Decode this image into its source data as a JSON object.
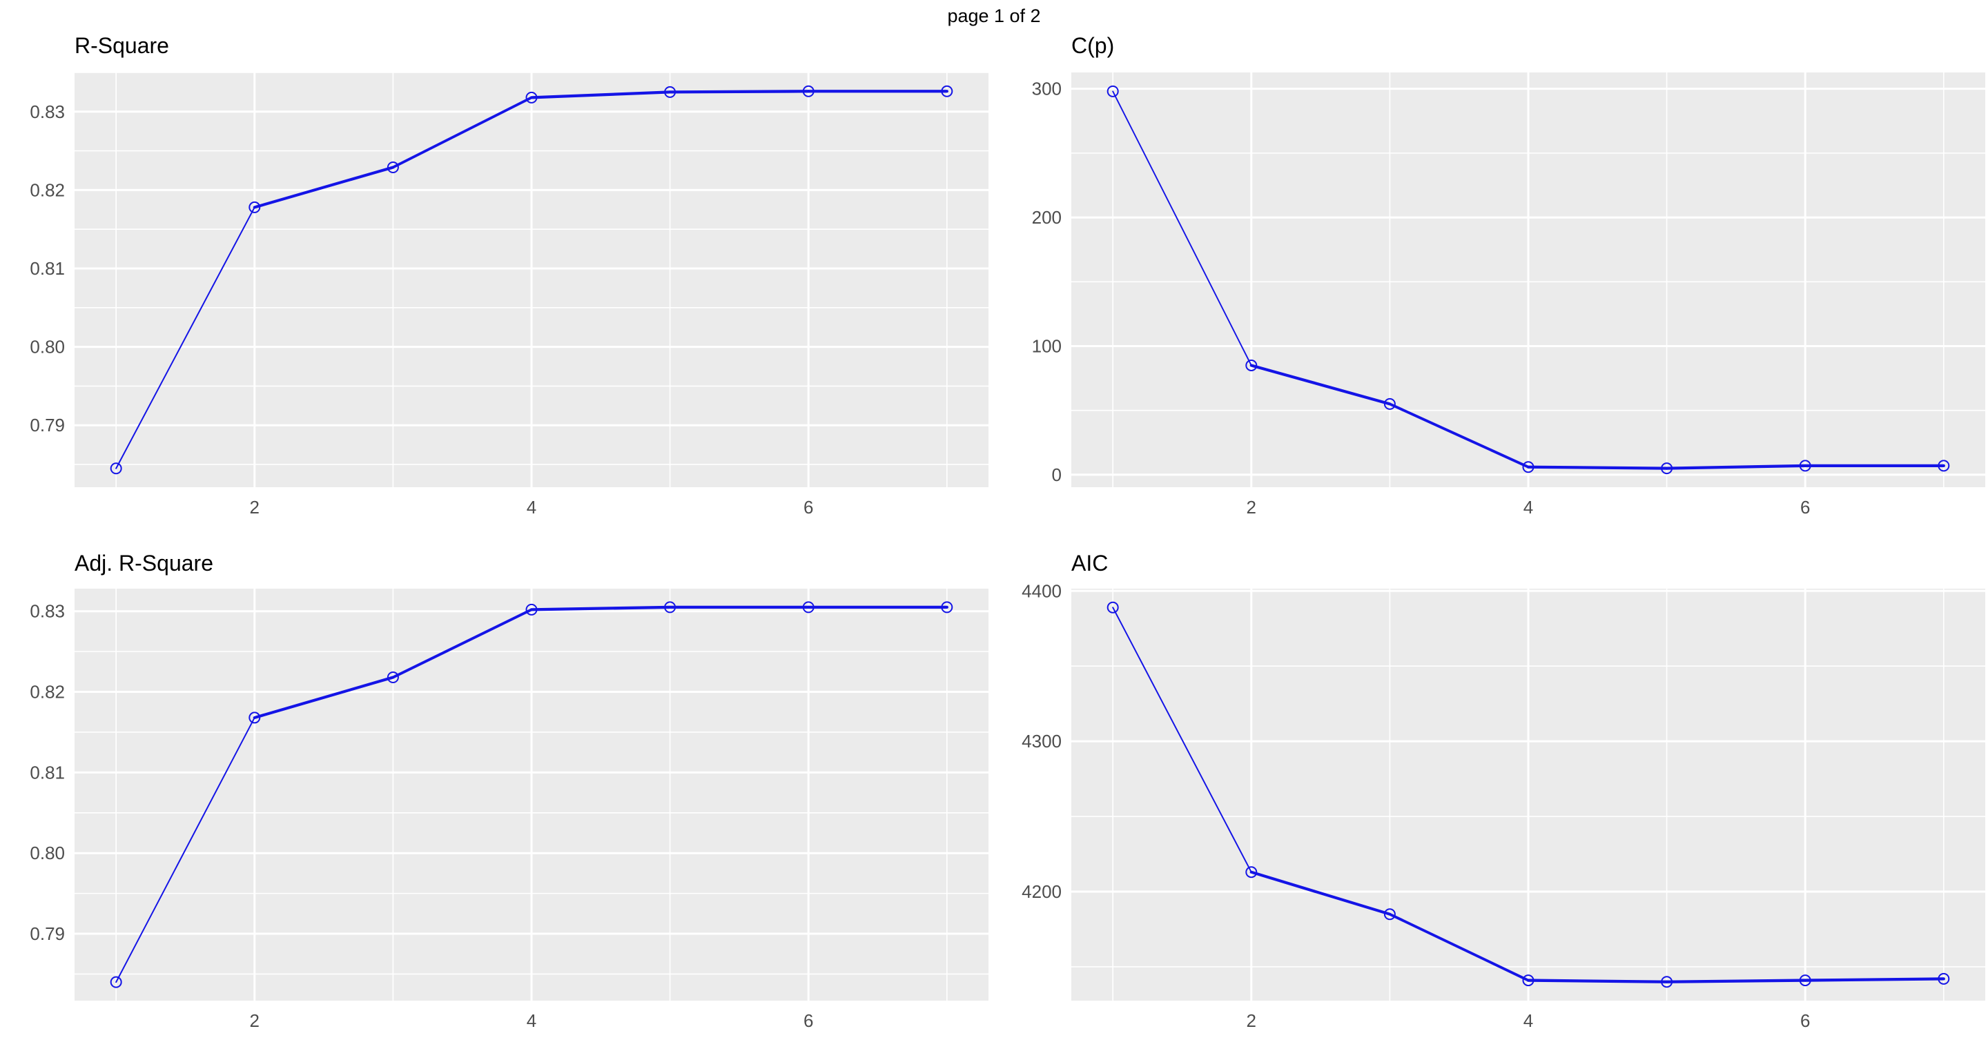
{
  "page": {
    "title": "page 1 of 2"
  },
  "theme": {
    "background": "#FFFFFF",
    "panel_bg": "#EBEBEB",
    "grid_color": "#FFFFFF",
    "line_color": "#1414E6",
    "tick_label_color": "#4D4D4D",
    "title_color": "#000000"
  },
  "chart_data": [
    {
      "id": "r-square",
      "type": "line",
      "title": "R-Square",
      "xlabel": "",
      "ylabel": "",
      "legend": "none",
      "grid": true,
      "marker": "open-circle",
      "x": [
        1,
        2,
        3,
        4,
        5,
        6,
        7
      ],
      "values": [
        0.7845,
        0.8178,
        0.8229,
        0.8318,
        0.8325,
        0.8326,
        0.8326
      ],
      "xlim": [
        0.7,
        7.3
      ],
      "ylim": [
        0.7821,
        0.835
      ],
      "x_major": [
        2,
        4,
        6
      ],
      "x_major_labels": [
        "2",
        "4",
        "6"
      ],
      "x_minor": [
        1,
        3,
        5,
        7
      ],
      "y_major": [
        0.79,
        0.8,
        0.81,
        0.82,
        0.83
      ],
      "y_major_labels": [
        "0.79",
        "0.80",
        "0.81",
        "0.82",
        "0.83"
      ],
      "y_minor": [
        0.785,
        0.795,
        0.805,
        0.815,
        0.825,
        0.835
      ]
    },
    {
      "id": "cp",
      "type": "line",
      "title": "C(p)",
      "xlabel": "",
      "ylabel": "",
      "legend": "none",
      "grid": true,
      "marker": "open-circle",
      "x": [
        1,
        2,
        3,
        4,
        5,
        6,
        7
      ],
      "values": [
        298,
        85,
        55,
        6,
        5,
        7,
        7
      ],
      "xlim": [
        0.7,
        7.3
      ],
      "ylim": [
        -9.7,
        312.7
      ],
      "x_major": [
        2,
        4,
        6
      ],
      "x_major_labels": [
        "2",
        "4",
        "6"
      ],
      "x_minor": [
        1,
        3,
        5,
        7
      ],
      "y_major": [
        0,
        100,
        200,
        300
      ],
      "y_major_labels": [
        "0",
        "100",
        "200",
        "300"
      ],
      "y_minor": [
        50,
        150,
        250
      ]
    },
    {
      "id": "adj-r-square",
      "type": "line",
      "title": "Adj. R-Square",
      "xlabel": "",
      "ylabel": "",
      "legend": "none",
      "grid": true,
      "marker": "open-circle",
      "x": [
        1,
        2,
        3,
        4,
        5,
        6,
        7
      ],
      "values": [
        0.784,
        0.8168,
        0.8218,
        0.8302,
        0.8305,
        0.8305,
        0.8305
      ],
      "xlim": [
        0.7,
        7.3
      ],
      "ylim": [
        0.7817,
        0.8328
      ],
      "x_major": [
        2,
        4,
        6
      ],
      "x_major_labels": [
        "2",
        "4",
        "6"
      ],
      "x_minor": [
        1,
        3,
        5,
        7
      ],
      "y_major": [
        0.79,
        0.8,
        0.81,
        0.82,
        0.83
      ],
      "y_major_labels": [
        "0.79",
        "0.80",
        "0.81",
        "0.82",
        "0.83"
      ],
      "y_minor": [
        0.785,
        0.795,
        0.805,
        0.815,
        0.825
      ]
    },
    {
      "id": "aic",
      "type": "line",
      "title": "AIC",
      "xlabel": "",
      "ylabel": "",
      "legend": "none",
      "grid": true,
      "marker": "open-circle",
      "x": [
        1,
        2,
        3,
        4,
        5,
        6,
        7
      ],
      "values": [
        4389,
        4213,
        4185,
        4141,
        4140,
        4141,
        4142
      ],
      "xlim": [
        0.7,
        7.3
      ],
      "ylim": [
        4127.5,
        4401.5
      ],
      "x_major": [
        2,
        4,
        6
      ],
      "x_major_labels": [
        "2",
        "4",
        "6"
      ],
      "x_minor": [
        1,
        3,
        5,
        7
      ],
      "y_major": [
        4200,
        4300,
        4400
      ],
      "y_major_labels": [
        "4200",
        "4300",
        "4400"
      ],
      "y_minor": [
        4150,
        4250,
        4350
      ]
    }
  ]
}
